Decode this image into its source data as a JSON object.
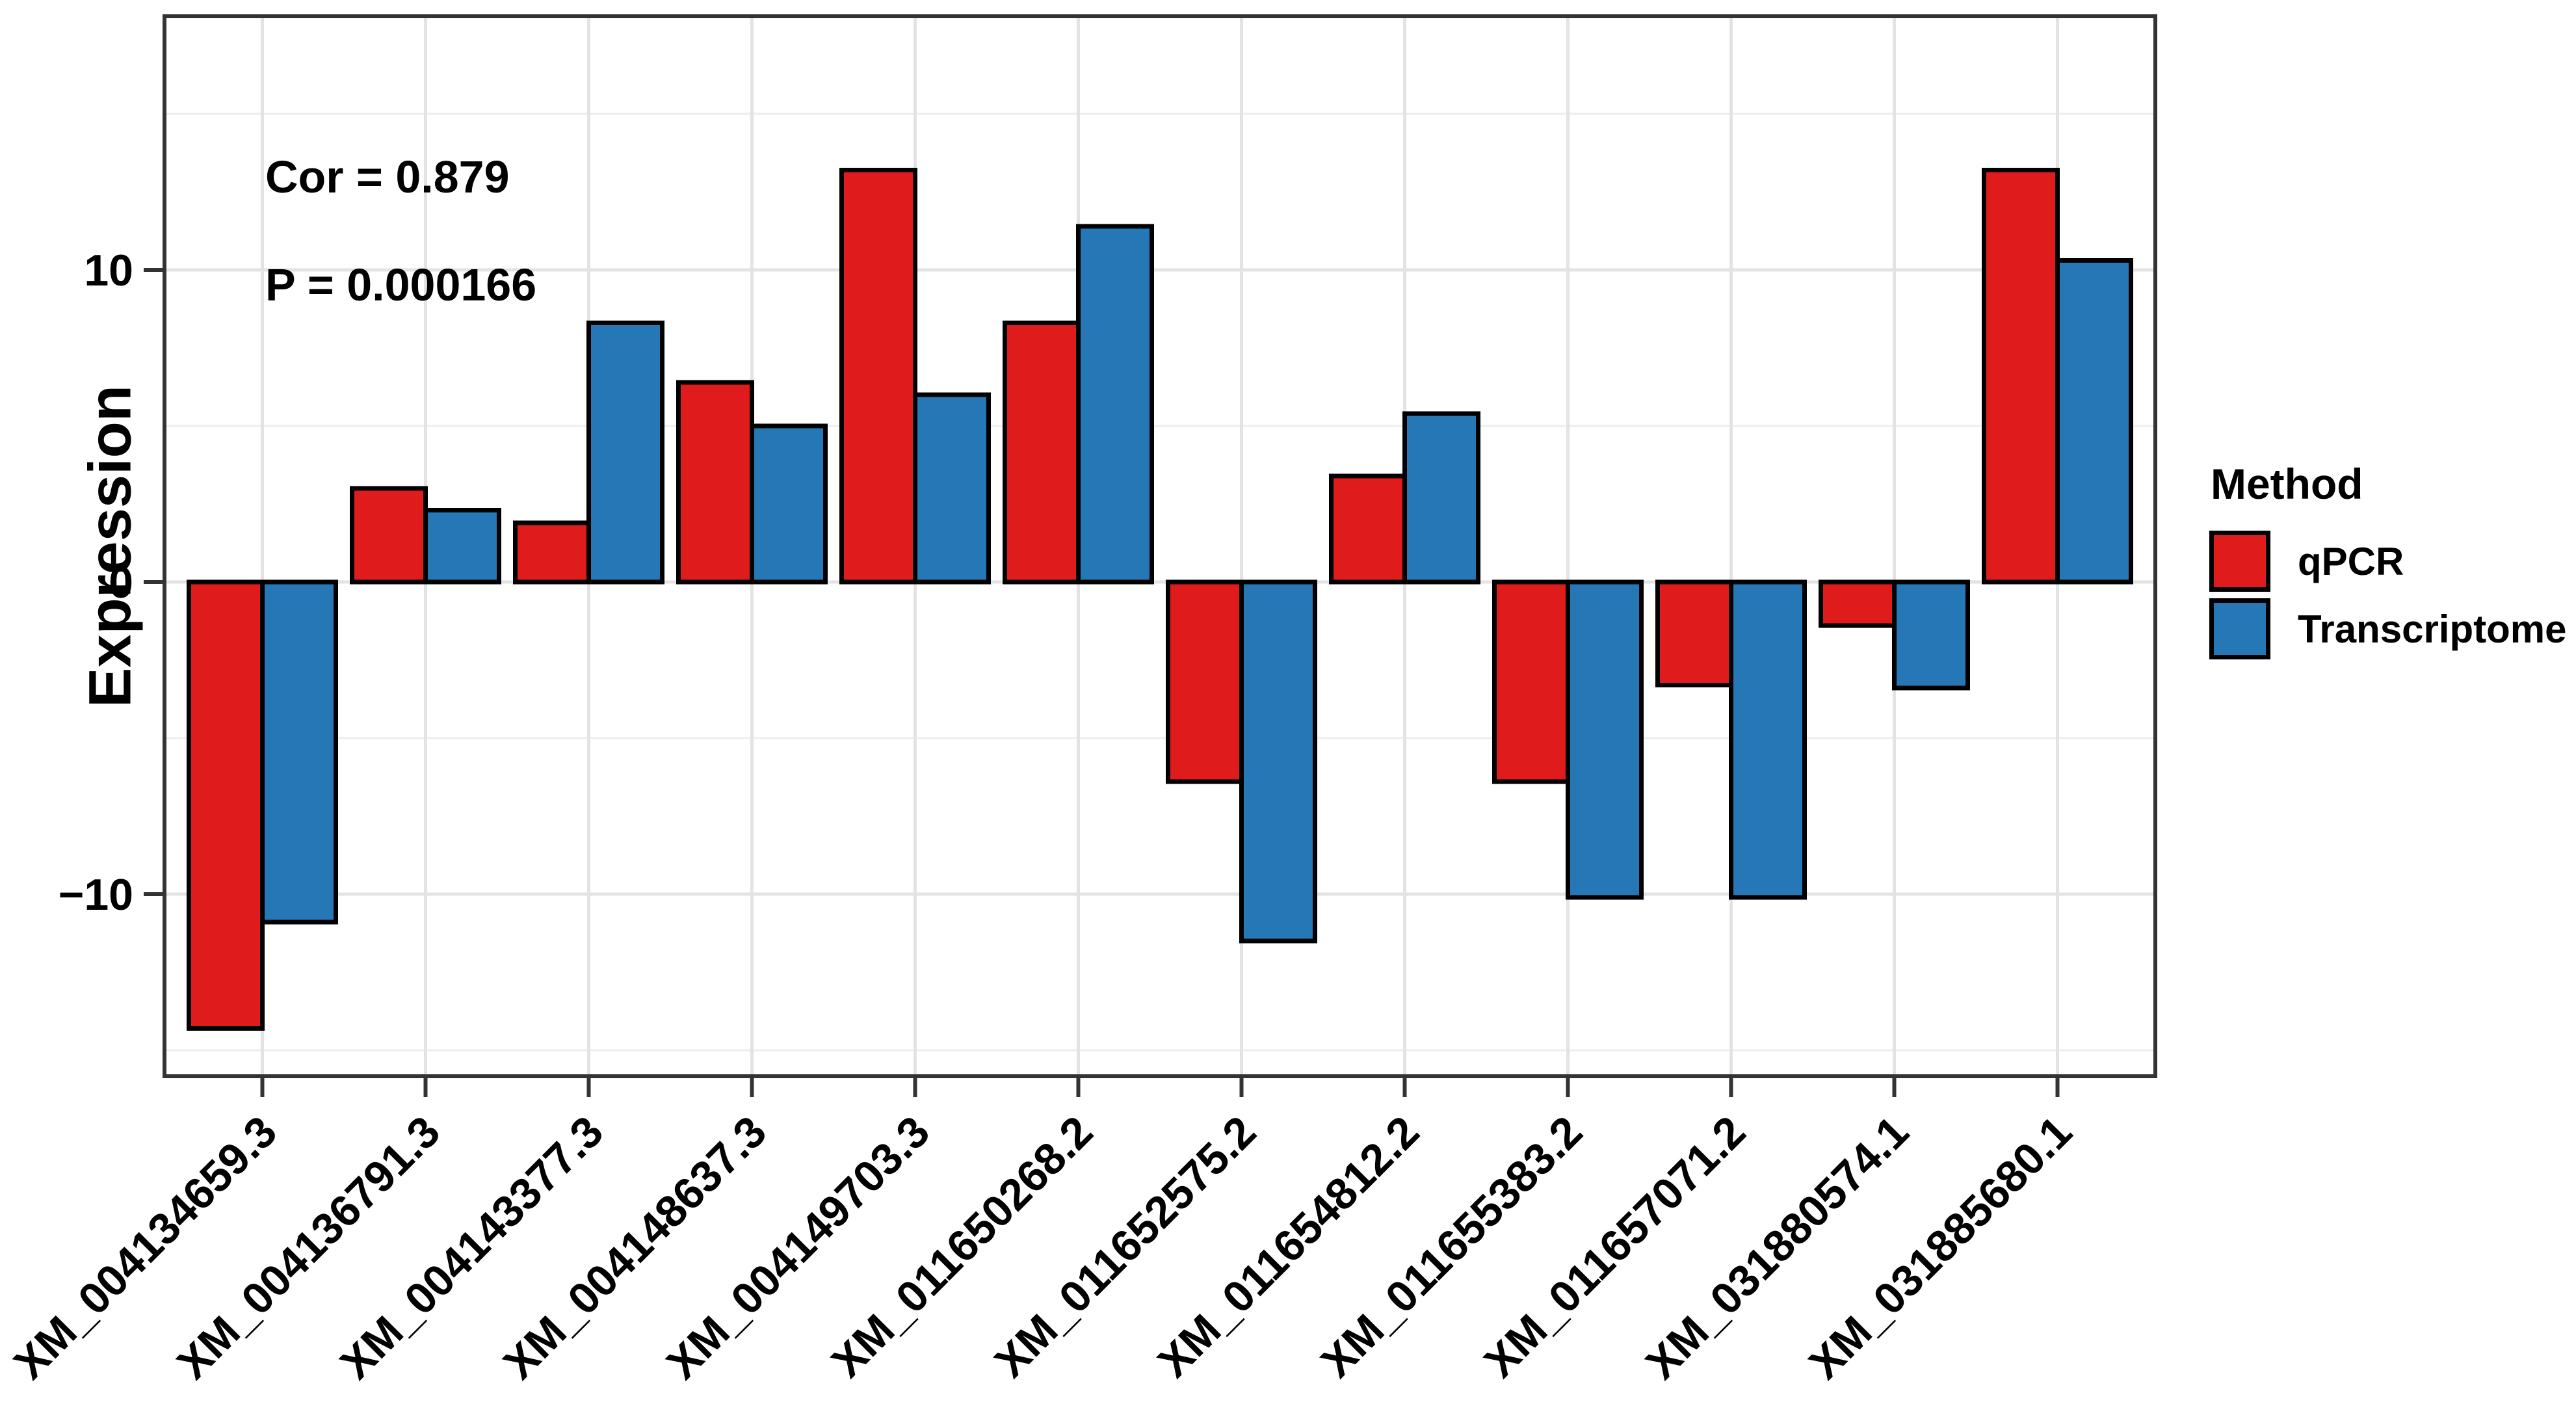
{
  "figure": {
    "background": "#FFFFFF",
    "annotation": {
      "cor": "Cor = 0.879",
      "p": "P = 0.000166"
    },
    "y_axis": {
      "title": "Expression",
      "tick_labels": [
        "10",
        "0",
        "−10"
      ],
      "tick_values": [
        10,
        0,
        -10
      ]
    },
    "legend": {
      "title": "Method",
      "items": [
        {
          "label": "qPCR",
          "color": "#E01B1C"
        },
        {
          "label": "Transcriptome",
          "color": "#2577B6"
        }
      ]
    }
  },
  "chart_data": {
    "type": "bar",
    "title": "",
    "ylabel": "Expression",
    "xlabel": "",
    "categories": [
      "XM_004134659.3",
      "XM_004136791.3",
      "XM_004143377.3",
      "XM_004148637.3",
      "XM_004149703.3",
      "XM_011650268.2",
      "XM_011652575.2",
      "XM_011654812.2",
      "XM_011655383.2",
      "XM_011657071.2",
      "XM_031880574.1",
      "XM_031885680.1"
    ],
    "series": [
      {
        "name": "qPCR",
        "color": "#E01B1C",
        "values": [
          -14.3,
          3.0,
          1.9,
          6.4,
          13.2,
          8.3,
          -6.4,
          3.4,
          -6.4,
          -3.3,
          -1.4,
          13.2
        ]
      },
      {
        "name": "Transcriptome",
        "color": "#2577B6",
        "values": [
          -10.9,
          2.3,
          8.3,
          5.0,
          6.0,
          11.4,
          -11.5,
          5.4,
          -10.1,
          -10.1,
          -3.4,
          10.3
        ]
      }
    ],
    "annotations": [
      "Cor = 0.879",
      "P = 0.000166"
    ],
    "ylim": [
      -15.8,
      18.1
    ],
    "y_major_gridlines": [
      -10,
      0,
      10
    ],
    "y_minor_gridlines": [
      -15,
      -5,
      5,
      15
    ],
    "grid": true,
    "legend_title": "Method",
    "legend_position": "right",
    "bar_border_color": "#000000",
    "x_label_rotation_deg": 45
  },
  "style": {
    "grid_major": "#E3E3E3",
    "grid_minor": "#EDEDED",
    "panel_border": "#333333",
    "tick_color": "#333333",
    "text_color": "#000000"
  }
}
